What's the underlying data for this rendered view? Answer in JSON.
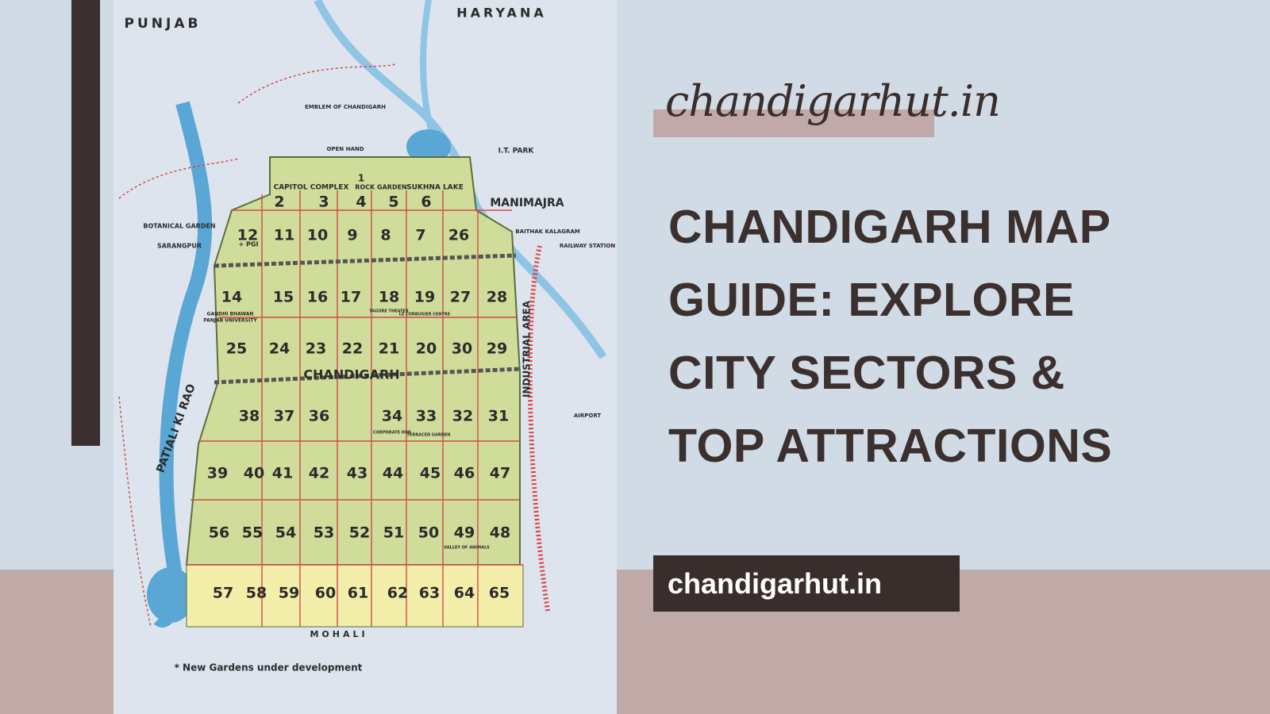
{
  "brand": {
    "logo": "chandigarhut.in",
    "title_lines": [
      "CHANDIGARH MAP",
      "GUIDE: EXPLORE",
      "CITY SECTORS &",
      "TOP ATTRACTIONS"
    ],
    "button": "chandigarhut.in"
  },
  "map": {
    "regions": [
      "PUNJAB",
      "HARYANA",
      "MOHALI"
    ],
    "landmarks": [
      "EMBLEM OF CHANDIGARH",
      "OPEN HAND",
      "CAPITOL COMPLEX",
      "ROCK GARDEN",
      "SUKHNA LAKE",
      "I.T. PARK",
      "MANIMAJRA",
      "BAITHAK KALAGRAM",
      "RAILWAY STATION",
      "BOTANICAL GARDEN",
      "SARANGPUR",
      "GANDHI BHAWAN",
      "PANJAB UNIVERSITY",
      "CHANDIGARH",
      "INDUSTRIAL AREA",
      "AIRPORT",
      "PATIALI KI RAO",
      "1",
      "+ PGI",
      "TAGORE THEATER",
      "LE CORBUSIER CENTRE",
      "CORPORATE HUB",
      "TERRACED GARDEN",
      "VALLEY OF ANIMALS"
    ],
    "sector_rows": [
      [
        "2",
        "3",
        "4",
        "5",
        "6"
      ],
      [
        "12",
        "11",
        "10",
        "9",
        "8",
        "7",
        "26"
      ],
      [
        "14",
        "15",
        "16",
        "17",
        "18",
        "19",
        "27",
        "28"
      ],
      [
        "25",
        "24",
        "23",
        "22",
        "21",
        "20",
        "30",
        "29"
      ],
      [
        "38",
        "37",
        "36",
        "34",
        "33",
        "32",
        "31"
      ],
      [
        "39",
        "40",
        "41",
        "42",
        "43",
        "44",
        "45",
        "46",
        "47"
      ],
      [
        "56",
        "55",
        "54",
        "53",
        "52",
        "51",
        "50",
        "49",
        "48"
      ],
      [
        "57",
        "58",
        "59",
        "60",
        "61",
        "62",
        "63",
        "64",
        "65"
      ]
    ],
    "footnote": "* New Gardens under development"
  }
}
